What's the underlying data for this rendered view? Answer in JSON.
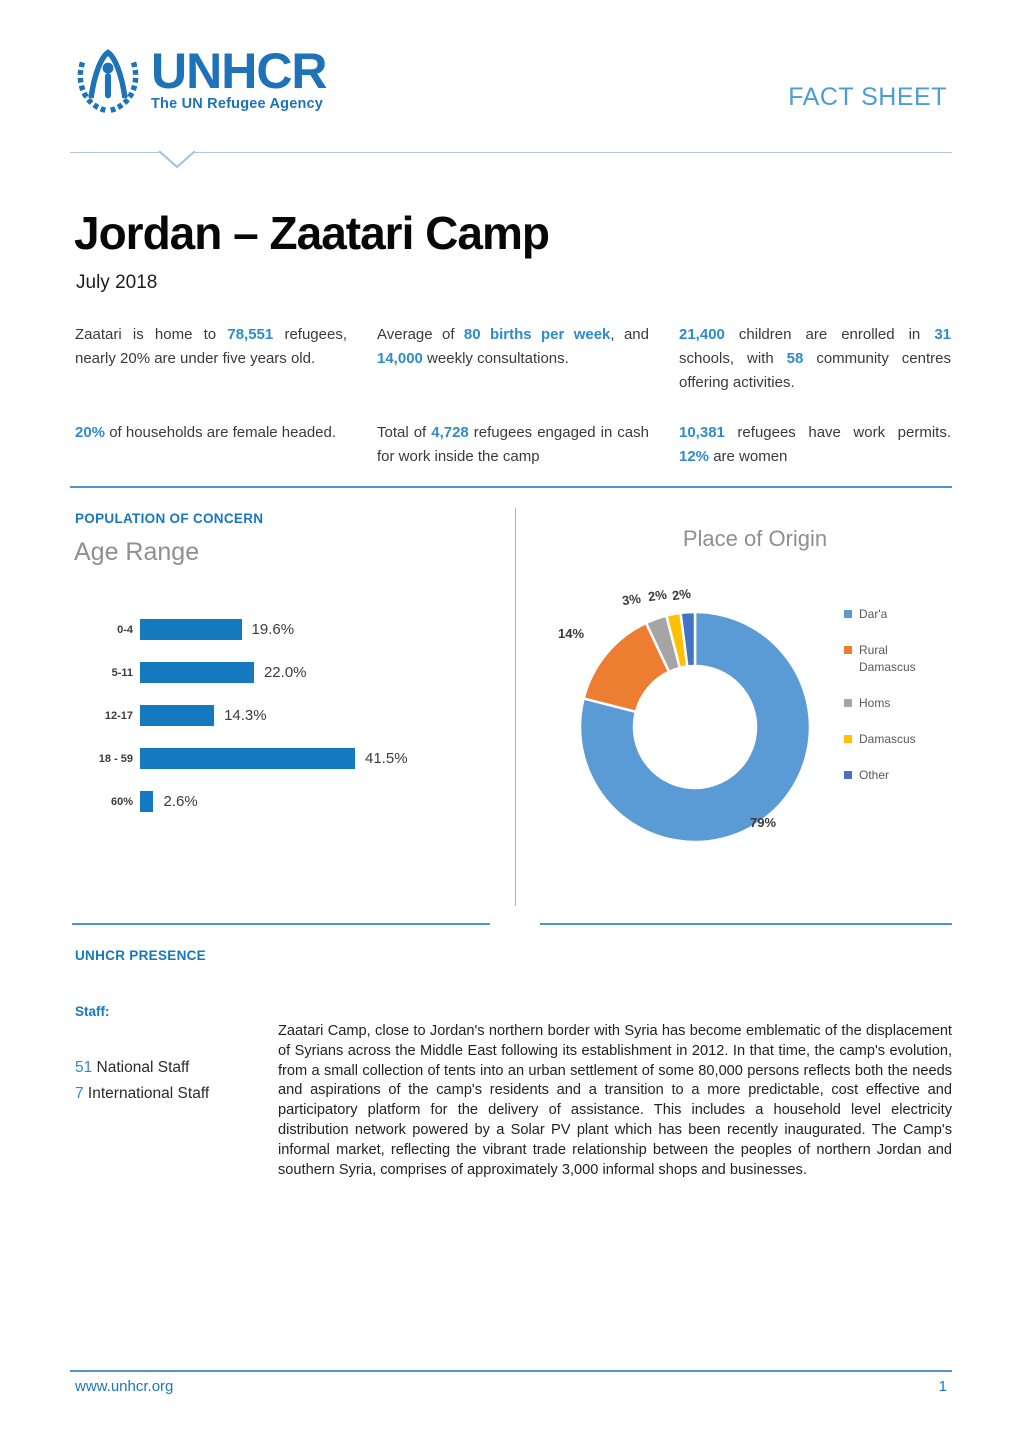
{
  "header": {
    "label": "FACT SHEET"
  },
  "logo": {
    "name": "UNHCR",
    "tagline": "The UN Refugee Agency"
  },
  "title": "Jordan – Zaatari Camp",
  "subtitle": "July 2018",
  "key_figures": [
    [
      {
        "t": "Zaatari is home to "
      },
      {
        "t": "78,551",
        "hl": true
      },
      {
        "t": " refugees, nearly 20% are under five years old."
      }
    ],
    [
      {
        "t": "Average of "
      },
      {
        "t": "80 births per week",
        "hl": true
      },
      {
        "t": ", and "
      },
      {
        "t": "14,000",
        "hl": true
      },
      {
        "t": " weekly consultations."
      }
    ],
    [
      {
        "t": "21,400",
        "hl": true
      },
      {
        "t": " children are enrolled in "
      },
      {
        "t": "31",
        "hl": true
      },
      {
        "t": " schools, with "
      },
      {
        "t": "58",
        "hl": true
      },
      {
        "t": " community centres offering activities."
      }
    ],
    [
      {
        "t": "20%",
        "hl": true
      },
      {
        "t": " of households are female headed."
      }
    ],
    [
      {
        "t": "Total of "
      },
      {
        "t": "4,728",
        "hl": true
      },
      {
        "t": " refugees engaged in cash for work inside the camp"
      }
    ],
    [
      {
        "t": "10,381",
        "hl": true
      },
      {
        "t": " refugees have work permits. "
      },
      {
        "t": "12%",
        "hl": true
      },
      {
        "t": " are women"
      }
    ]
  ],
  "chart_data": [
    {
      "type": "bar",
      "orientation": "horizontal",
      "section_label": "POPULATION OF CONCERN",
      "title": "Age Range",
      "categories": [
        "0-4",
        "5-11",
        "12-17",
        "18 - 59",
        "60%"
      ],
      "values": [
        19.6,
        22.0,
        14.3,
        41.5,
        2.6
      ],
      "value_labels": [
        "19.6%",
        "22.0%",
        "14.3%",
        "41.5%",
        "2.6%"
      ],
      "bar_color": "#1479bf",
      "xlim": [
        0,
        45
      ],
      "grid": false
    },
    {
      "type": "pie",
      "subtype": "donut",
      "title": "Place of Origin",
      "labels": [
        "Dar'a",
        "Rural Damascus",
        "Homs",
        "Damascus",
        "Other"
      ],
      "values": [
        79,
        14,
        3,
        2,
        2
      ],
      "colors": [
        "#5b9bd5",
        "#ed7d31",
        "#a5a5a5",
        "#ffc000",
        "#4472c4"
      ],
      "callouts": [
        "3%",
        "2%",
        "2%",
        "14%",
        "79%"
      ],
      "legend_position": "right"
    }
  ],
  "presence": {
    "heading": "UNHCR PRESENCE",
    "staff_heading": "Staff:",
    "staff": [
      {
        "count": "51",
        "label": " National Staff"
      },
      {
        "count": "7",
        "label": " International Staff"
      }
    ]
  },
  "about": "Zaatari Camp, close to Jordan's northern border with Syria has become emblematic of the displacement of Syrians across the Middle East following its establishment in 2012. In that time, the camp's evolution, from a small collection of tents into an urban settlement of some 80,000 persons reflects both the needs and aspirations of the camp's residents and a transition to a more predictable, cost effective and participatory platform for the delivery of assistance. This includes a household level electricity distribution network powered by a Solar PV plant which has been recently inaugurated. The Camp's informal market, reflecting the vibrant trade relationship between the peoples of northern Jordan and southern Syria, comprises of approximately 3,000 informal shops and businesses.",
  "footer": {
    "url": "www.unhcr.org",
    "page": "1"
  }
}
